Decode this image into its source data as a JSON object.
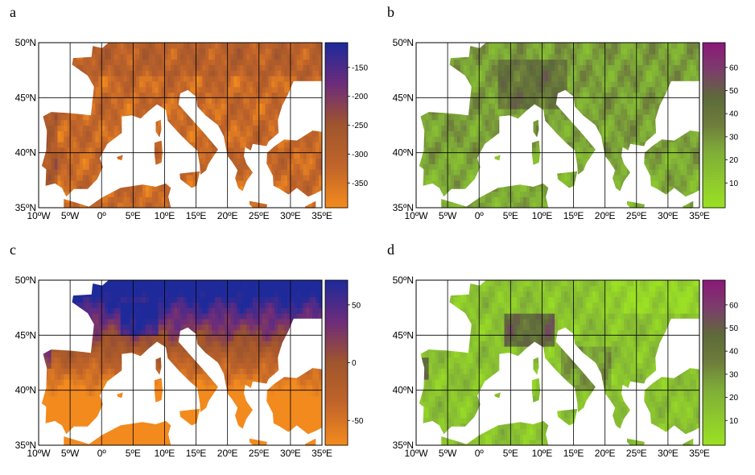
{
  "panels": [
    {
      "id": "a",
      "label": "a",
      "palette": "orange-blue",
      "colorbar": {
        "ticks": [
          "-150",
          "-200",
          "-250",
          "-300",
          "-350"
        ]
      }
    },
    {
      "id": "b",
      "label": "b",
      "palette": "green-purple",
      "colorbar": {
        "ticks": [
          "60",
          "50",
          "40",
          "30",
          "20",
          "10"
        ]
      }
    },
    {
      "id": "c",
      "label": "c",
      "palette": "orange-blue",
      "colorbar": {
        "ticks": [
          "50",
          "0",
          "-50"
        ]
      }
    },
    {
      "id": "d",
      "label": "d",
      "palette": "green-purple",
      "colorbar": {
        "ticks": [
          "60",
          "50",
          "40",
          "30",
          "20",
          "10"
        ]
      }
    }
  ],
  "axes": {
    "lat_labels": [
      "50ºN",
      "45ºN",
      "40ºN",
      "35ºN"
    ],
    "lon_labels": [
      "10ºW",
      "5ºW",
      "0º",
      "5ºE",
      "10ºE",
      "15ºE",
      "20ºE",
      "25ºE",
      "30ºE",
      "35ºE"
    ]
  },
  "colors": {
    "orange": "#f28a1e",
    "brown": "#a0552c",
    "blue": "#1f2a9a",
    "purple": "#6e2c7a",
    "green_light": "#9be024",
    "green_mid": "#7fae38",
    "green_dark": "#5d6b3a",
    "magenta": "#8a1a78"
  }
}
